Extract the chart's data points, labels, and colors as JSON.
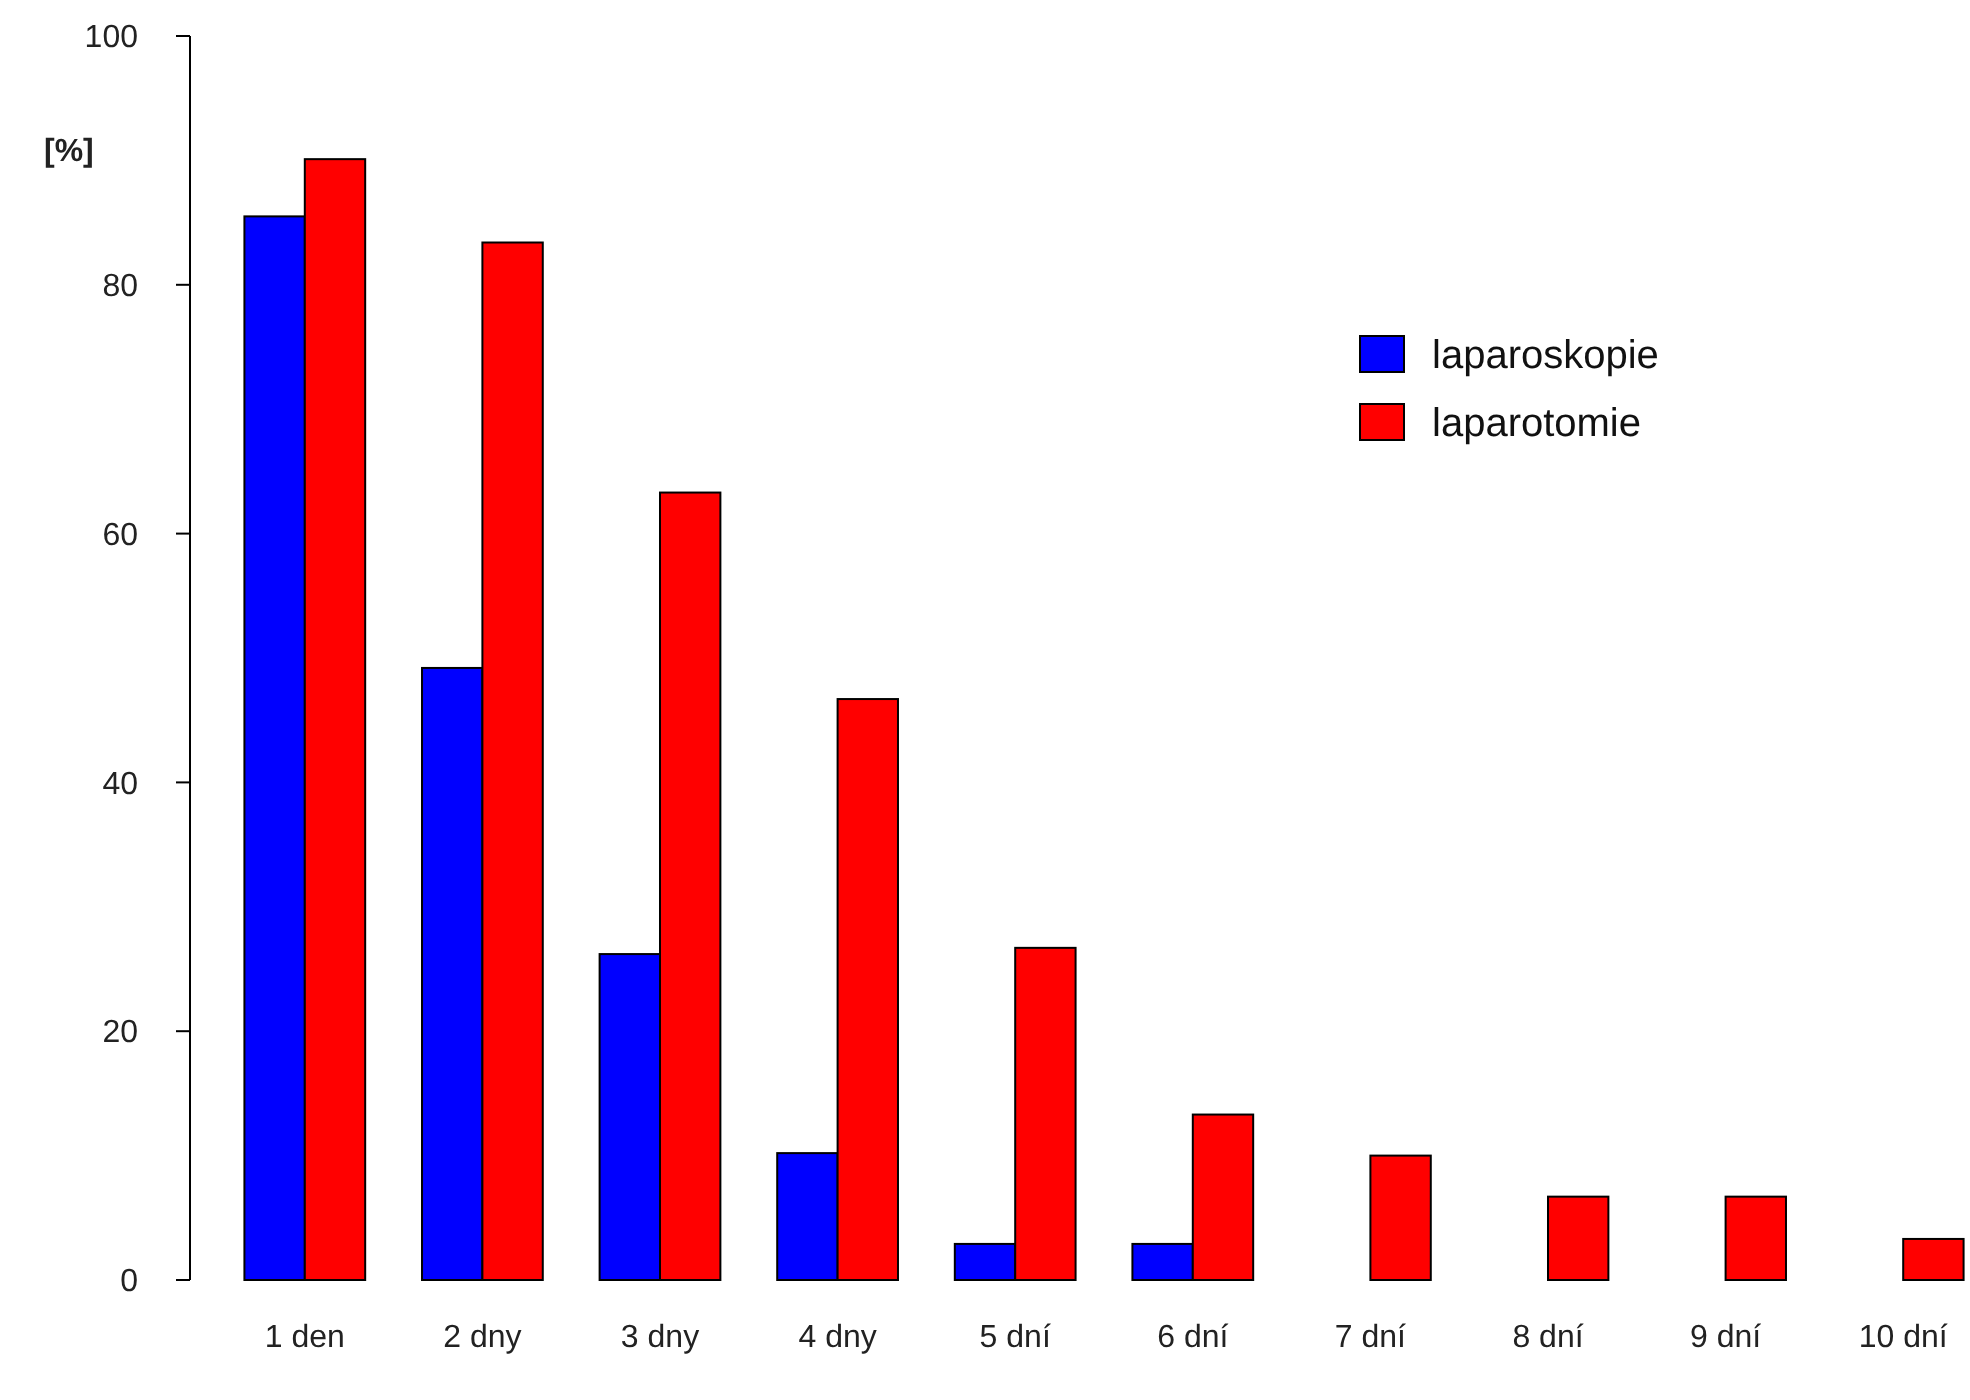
{
  "chart_data": {
    "type": "bar",
    "ylabel": "[%]",
    "categories": [
      "1 den",
      "2 dny",
      "3 dny",
      "4 dny",
      "5 dní",
      "6 dní",
      "7 dní",
      "8 dní",
      "9 dní",
      "10 dní"
    ],
    "series": [
      {
        "name": "laparoskopie",
        "color": "#0000ff",
        "values": [
          85.5,
          49.2,
          26.2,
          10.2,
          2.9,
          2.9,
          0,
          0,
          0,
          0
        ]
      },
      {
        "name": "laparotomie",
        "color": "#ff0000",
        "values": [
          90.1,
          83.4,
          63.3,
          46.7,
          26.7,
          13.3,
          10,
          6.7,
          6.7,
          3.3
        ]
      }
    ],
    "ylim": [
      0,
      100
    ],
    "yticks": [
      0,
      20,
      40,
      60,
      80,
      100
    ],
    "grid": false,
    "legend": "top right"
  }
}
